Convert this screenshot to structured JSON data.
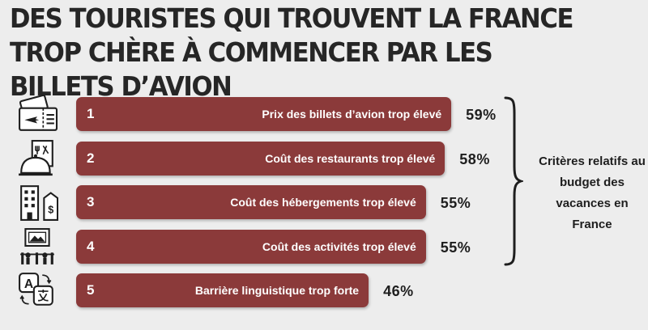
{
  "title": "DES TOURISTES QUI TROUVENT LA FRANCE TROP CHÈRE À COMMENCER PAR LES BILLETS D’AVION",
  "bracket_label": "Critères relatifs au budget des vacances en France",
  "colors": {
    "bar": "#8b3a3a",
    "text_dark": "#1e1e1e",
    "background": "#ededed"
  },
  "chart_data": {
    "type": "bar",
    "orientation": "horizontal",
    "title": "DES TOURISTES QUI TROUVENT LA FRANCE TROP CHÈRE À COMMENCER PAR LES BILLETS D’AVION",
    "unit": "%",
    "categories": [
      "Prix des billets d’avion trop élevé",
      "Coût des restaurants trop élevé",
      "Coût des hébergements trop élevé",
      "Coût des activités trop élevé",
      "Barrière linguistique trop forte"
    ],
    "ranks": [
      "1",
      "2",
      "3",
      "4",
      "5"
    ],
    "values": [
      59,
      58,
      55,
      55,
      46
    ],
    "value_labels": [
      "59%",
      "58%",
      "55%",
      "55%",
      "46%"
    ],
    "icons": [
      "plane-ticket-icon",
      "restaurant-menu-icon",
      "hotel-building-icon",
      "museum-painting-icon",
      "translate-icon"
    ],
    "grid": false,
    "legend": "none"
  }
}
